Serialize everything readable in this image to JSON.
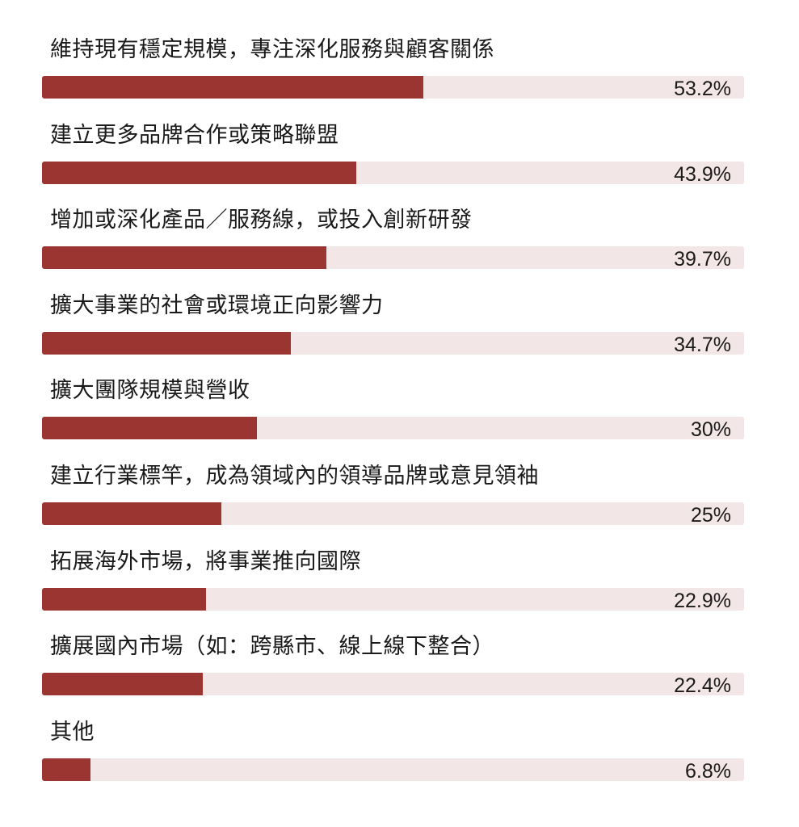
{
  "chart_data": {
    "type": "bar",
    "orientation": "horizontal",
    "categories": [
      "維持現有穩定規模，專注深化服務與顧客關係",
      "建立更多品牌合作或策略聯盟",
      "增加或深化產品／服務線，或投入創新研發",
      "擴大事業的社會或環境正向影響力",
      "擴大團隊規模與營收",
      "建立行業標竿，成為領域內的領導品牌或意見領袖",
      "拓展海外市場，將事業推向國際",
      "擴展國內市場（如：跨縣市、線上線下整合）",
      "其他"
    ],
    "values": [
      53.2,
      43.9,
      39.7,
      34.7,
      30,
      25,
      22.9,
      22.4,
      6.8
    ],
    "value_labels": [
      "53.2%",
      "43.9%",
      "39.7%",
      "34.7%",
      "30%",
      "25%",
      "22.9%",
      "22.4%",
      "6.8%"
    ],
    "xlim": [
      0,
      98
    ],
    "grid": false,
    "colors": {
      "bar": "#9b3532",
      "track": "#f3e6e6"
    }
  }
}
